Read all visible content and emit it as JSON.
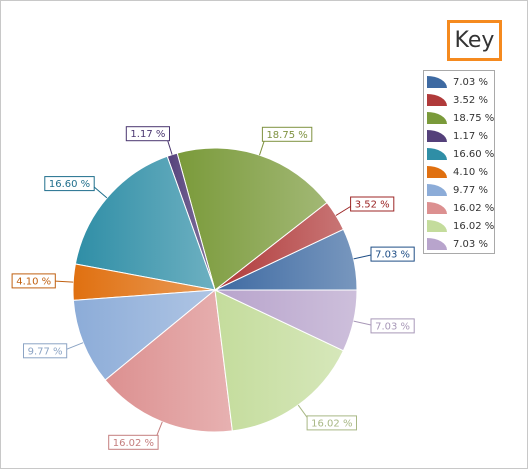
{
  "chart_data": {
    "type": "pie",
    "legend_title": "Key",
    "legend_position": "right",
    "start_angle_deg": 0,
    "direction": "counterclockwise",
    "slices": [
      {
        "label": "7.03 %",
        "value": 7.03,
        "color": "#3e6aa2",
        "label_color": "#1f4e86"
      },
      {
        "label": "3.52 %",
        "value": 3.52,
        "color": "#b03a3a",
        "label_color": "#9c2626"
      },
      {
        "label": "18.75 %",
        "value": 18.75,
        "color": "#7a9a3a",
        "label_color": "#7f9240"
      },
      {
        "label": "1.17 %",
        "value": 1.17,
        "color": "#54407a",
        "label_color": "#4a3670"
      },
      {
        "label": "16.60 %",
        "value": 16.6,
        "color": "#2f8ea6",
        "label_color": "#1f6e8c"
      },
      {
        "label": "4.10 %",
        "value": 4.1,
        "color": "#e07010",
        "label_color": "#c06010"
      },
      {
        "label": "9.77 %",
        "value": 9.77,
        "color": "#8cacd8",
        "label_color": "#8ca4c4"
      },
      {
        "label": "16.02 %",
        "value": 16.02,
        "color": "#dc9090",
        "label_color": "#c47e7e"
      },
      {
        "label": "16.02 %",
        "value": 16.02,
        "color": "#c4dc9c",
        "label_color": "#a8b884"
      },
      {
        "label": "7.03 %",
        "value": 7.03,
        "color": "#b8a4cc",
        "label_color": "#a898b8"
      }
    ]
  }
}
